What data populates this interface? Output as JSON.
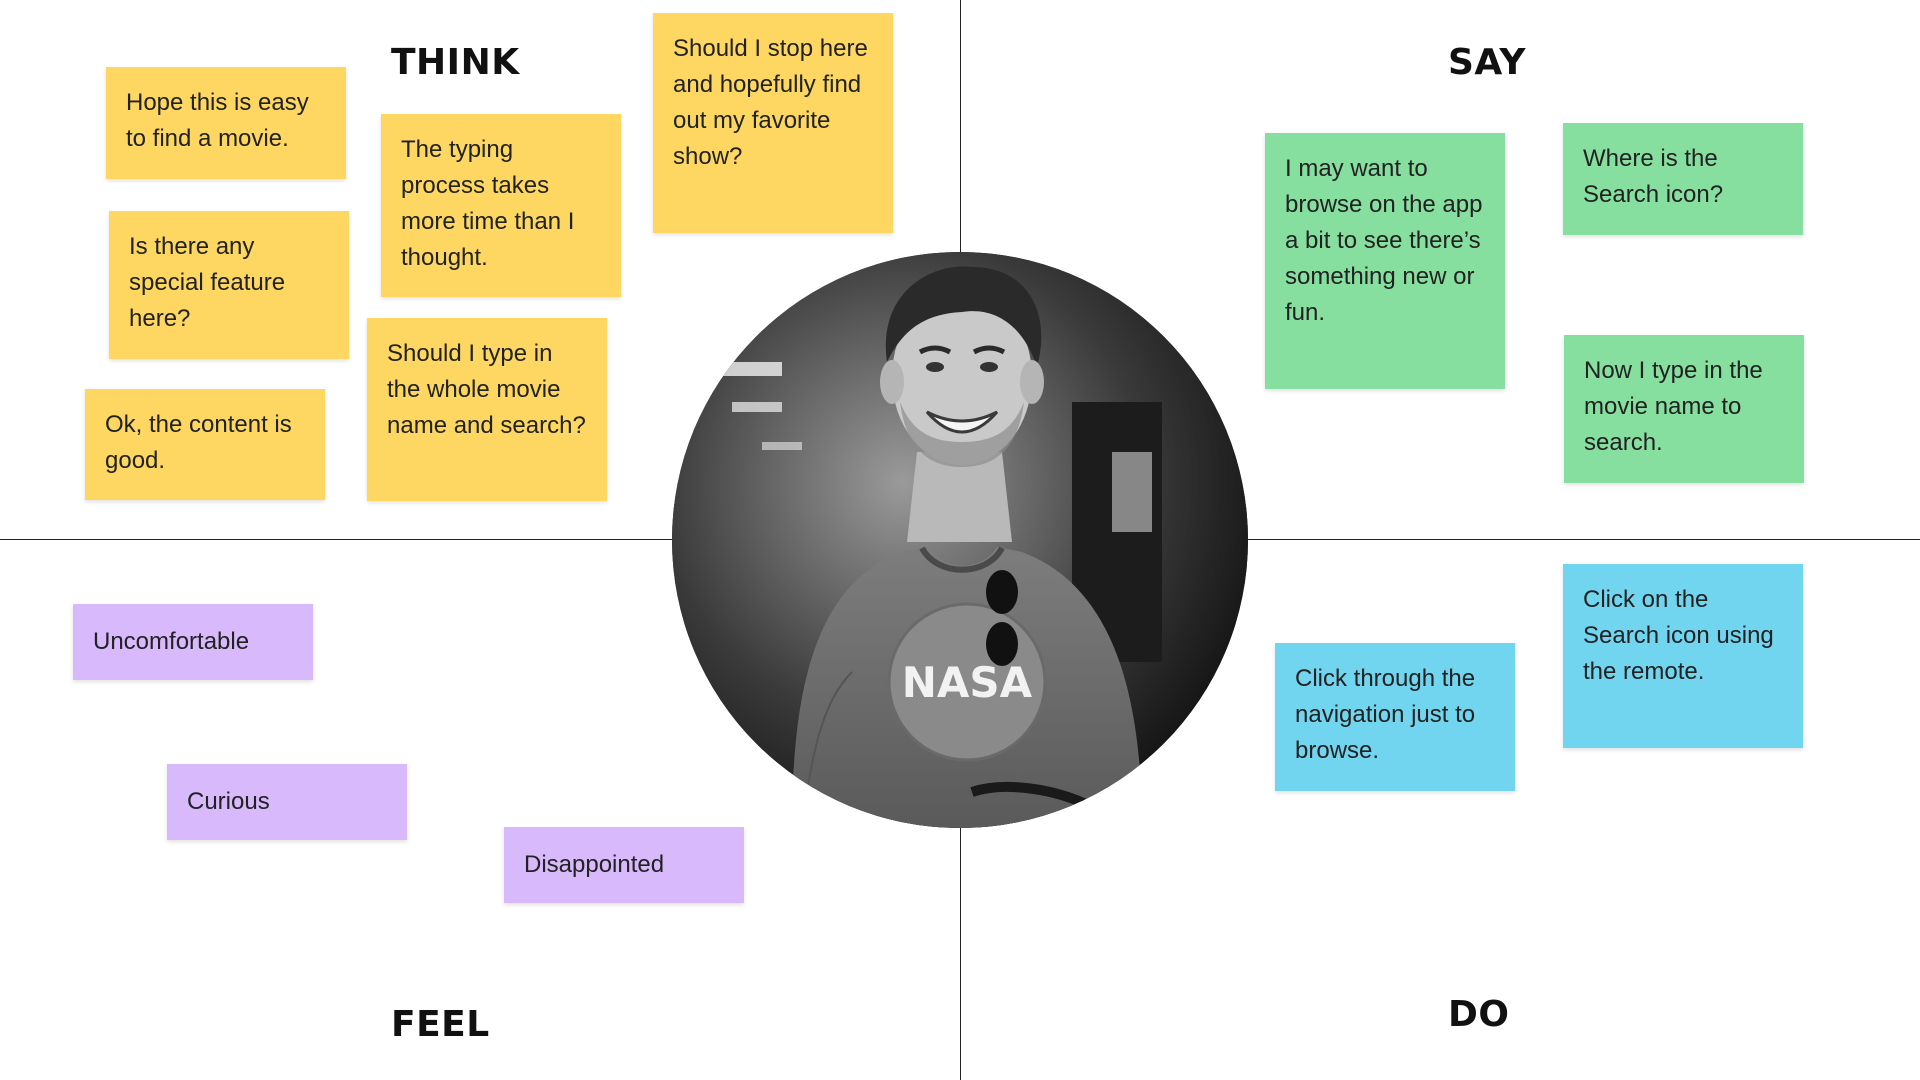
{
  "quadrants": {
    "think": "THINK",
    "say": "SAY",
    "feel": "FEEL",
    "do": "DO"
  },
  "think_notes": [
    "Hope this is easy to find a movie.",
    "Is there any special feature here?",
    "Ok, the content is good.",
    "The typing process takes more time than I thought.",
    "Should I type in the whole movie name and search?",
    "Should I stop here and hopefully find out my favorite show?"
  ],
  "say_notes": [
    "I may want to browse on the app a bit to see there’s something new or fun.",
    "Where is the Search icon?",
    "Now I type in the movie name to search."
  ],
  "feel_notes": [
    "Uncomfortable",
    "Curious",
    "Disappointed"
  ],
  "do_notes": [
    "Click through the navigation just to browse.",
    "Click on the Search icon using the remote."
  ],
  "persona": {
    "shirt_text": "NASA"
  },
  "colors": {
    "think": "#fdd762",
    "say": "#86df9f",
    "feel": "#d8b9fc",
    "do": "#72d5ef"
  }
}
